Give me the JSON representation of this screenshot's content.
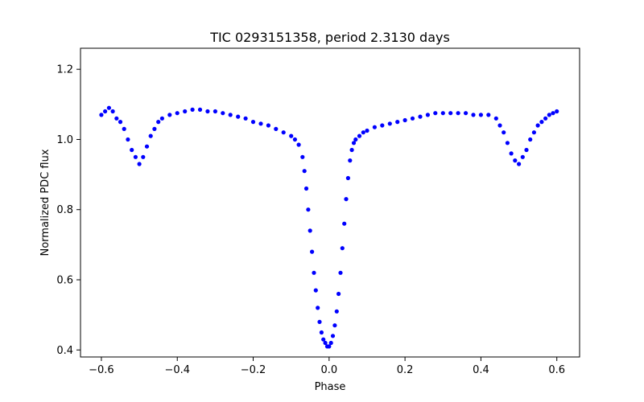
{
  "chart_data": {
    "type": "scatter",
    "title": "TIC 0293151358, period 2.3130 days",
    "xlabel": "Phase",
    "ylabel": "Normalized PDC flux",
    "xlim": [
      -0.655,
      0.66
    ],
    "ylim": [
      0.38,
      1.26
    ],
    "xticks": [
      -0.6,
      -0.4,
      -0.2,
      0.0,
      0.2,
      0.4,
      0.6
    ],
    "xtick_labels": [
      "−0.6",
      "−0.4",
      "−0.2",
      "0.0",
      "0.2",
      "0.4",
      "0.6"
    ],
    "yticks": [
      0.4,
      0.6,
      0.8,
      1.0,
      1.2
    ],
    "ytick_labels": [
      "0.4",
      "0.6",
      "0.8",
      "1.0",
      "1.2"
    ],
    "grid": false,
    "marker_color": "#0000ff",
    "series": [
      {
        "name": "",
        "x": [
          -0.6,
          -0.59,
          -0.58,
          -0.57,
          -0.56,
          -0.55,
          -0.54,
          -0.53,
          -0.52,
          -0.51,
          -0.5,
          -0.49,
          -0.48,
          -0.47,
          -0.46,
          -0.45,
          -0.44,
          -0.42,
          -0.4,
          -0.38,
          -0.36,
          -0.34,
          -0.32,
          -0.3,
          -0.28,
          -0.26,
          -0.24,
          -0.22,
          -0.2,
          -0.18,
          -0.16,
          -0.14,
          -0.12,
          -0.1,
          -0.09,
          -0.08,
          -0.07,
          -0.065,
          -0.06,
          -0.055,
          -0.05,
          -0.045,
          -0.04,
          -0.035,
          -0.03,
          -0.025,
          -0.02,
          -0.015,
          -0.01,
          -0.005,
          0.0,
          0.005,
          0.01,
          0.015,
          0.02,
          0.025,
          0.03,
          0.035,
          0.04,
          0.045,
          0.05,
          0.055,
          0.06,
          0.065,
          0.07,
          0.08,
          0.09,
          0.1,
          0.12,
          0.14,
          0.16,
          0.18,
          0.2,
          0.22,
          0.24,
          0.26,
          0.28,
          0.3,
          0.32,
          0.34,
          0.36,
          0.38,
          0.4,
          0.42,
          0.44,
          0.45,
          0.46,
          0.47,
          0.48,
          0.49,
          0.5,
          0.51,
          0.52,
          0.53,
          0.54,
          0.55,
          0.56,
          0.57,
          0.58,
          0.59,
          0.6
        ],
        "y": [
          1.07,
          1.08,
          1.09,
          1.08,
          1.06,
          1.05,
          1.03,
          1.0,
          0.97,
          0.95,
          0.93,
          0.95,
          0.98,
          1.01,
          1.03,
          1.05,
          1.06,
          1.07,
          1.075,
          1.08,
          1.085,
          1.085,
          1.08,
          1.08,
          1.075,
          1.07,
          1.065,
          1.06,
          1.05,
          1.045,
          1.04,
          1.03,
          1.02,
          1.01,
          1.0,
          0.985,
          0.95,
          0.91,
          0.86,
          0.8,
          0.74,
          0.68,
          0.62,
          0.57,
          0.52,
          0.48,
          0.45,
          0.43,
          0.42,
          0.41,
          0.41,
          0.42,
          0.44,
          0.47,
          0.51,
          0.56,
          0.62,
          0.69,
          0.76,
          0.83,
          0.89,
          0.94,
          0.97,
          0.99,
          1.0,
          1.01,
          1.02,
          1.025,
          1.035,
          1.04,
          1.045,
          1.05,
          1.055,
          1.06,
          1.065,
          1.07,
          1.075,
          1.075,
          1.075,
          1.075,
          1.075,
          1.07,
          1.07,
          1.07,
          1.06,
          1.04,
          1.02,
          0.99,
          0.96,
          0.94,
          0.93,
          0.95,
          0.97,
          1.0,
          1.02,
          1.04,
          1.05,
          1.06,
          1.07,
          1.075,
          1.08
        ]
      }
    ]
  }
}
